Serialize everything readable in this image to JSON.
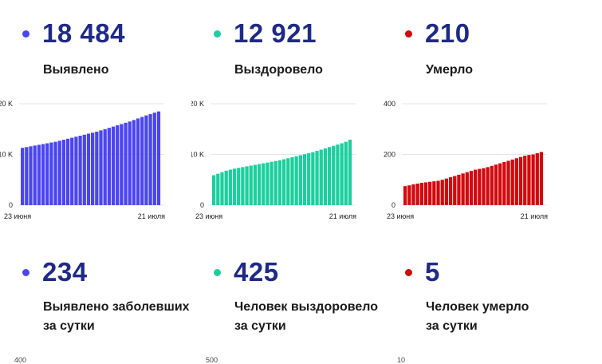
{
  "colors": {
    "blue": "#4b45f0",
    "teal": "#1ccf9e",
    "red": "#d3090e",
    "number": "#1f2a86"
  },
  "panels": [
    {
      "value": "18 484",
      "label": "Выявлено",
      "color": "#4b45f0",
      "chart_data": {
        "type": "bar",
        "ylim": [
          0,
          20000
        ],
        "yticks": [
          "0",
          "10 K",
          "20 K"
        ],
        "x_start_label": "23 июня",
        "x_end_label": "21 июля",
        "values": [
          11300,
          11450,
          11600,
          11750,
          11900,
          12050,
          12200,
          12350,
          12500,
          12700,
          12900,
          13100,
          13300,
          13500,
          13700,
          13900,
          14100,
          14300,
          14500,
          14750,
          15000,
          15250,
          15500,
          15750,
          16000,
          16250,
          16500,
          16800,
          17100,
          17400,
          17700,
          17950,
          18250,
          18484
        ]
      }
    },
    {
      "value": "12 921",
      "label": "Выздоровело",
      "color": "#1ccf9e",
      "chart_data": {
        "type": "bar",
        "ylim": [
          0,
          20000
        ],
        "yticks": [
          "0",
          "10 K",
          "20 K"
        ],
        "x_start_label": "23 июня",
        "x_end_label": "21 июля",
        "values": [
          5900,
          6200,
          6500,
          6800,
          7000,
          7200,
          7350,
          7500,
          7650,
          7800,
          7950,
          8100,
          8250,
          8400,
          8550,
          8700,
          8850,
          9050,
          9250,
          9450,
          9650,
          9850,
          10050,
          10250,
          10450,
          10700,
          10950,
          11200,
          11450,
          11700,
          11950,
          12200,
          12496,
          12921
        ]
      }
    },
    {
      "value": "210",
      "label": "Умерло",
      "color": "#d3090e",
      "chart_data": {
        "type": "bar",
        "ylim": [
          0,
          400
        ],
        "yticks": [
          "0",
          "200",
          "400"
        ],
        "x_start_label": "23 июня",
        "x_end_label": "21 июля",
        "values": [
          75,
          78,
          82,
          85,
          88,
          90,
          92,
          94,
          96,
          100,
          105,
          110,
          115,
          120,
          125,
          130,
          135,
          140,
          143,
          146,
          150,
          155,
          160,
          165,
          170,
          175,
          180,
          185,
          190,
          195,
          198,
          200,
          205,
          210
        ]
      }
    }
  ],
  "daily": [
    {
      "value": "234",
      "label_line1": "Выявлено заболевших",
      "label_line2": "за сутки",
      "color": "#4b45f0",
      "next_tick": "400"
    },
    {
      "value": "425",
      "label_line1": "Человек выздоровело",
      "label_line2": "за сутки",
      "color": "#1ccf9e",
      "next_tick": "500"
    },
    {
      "value": "5",
      "label_line1": "Человек умерло",
      "label_line2": "за сутки",
      "color": "#d3090e",
      "next_tick": "10"
    }
  ]
}
